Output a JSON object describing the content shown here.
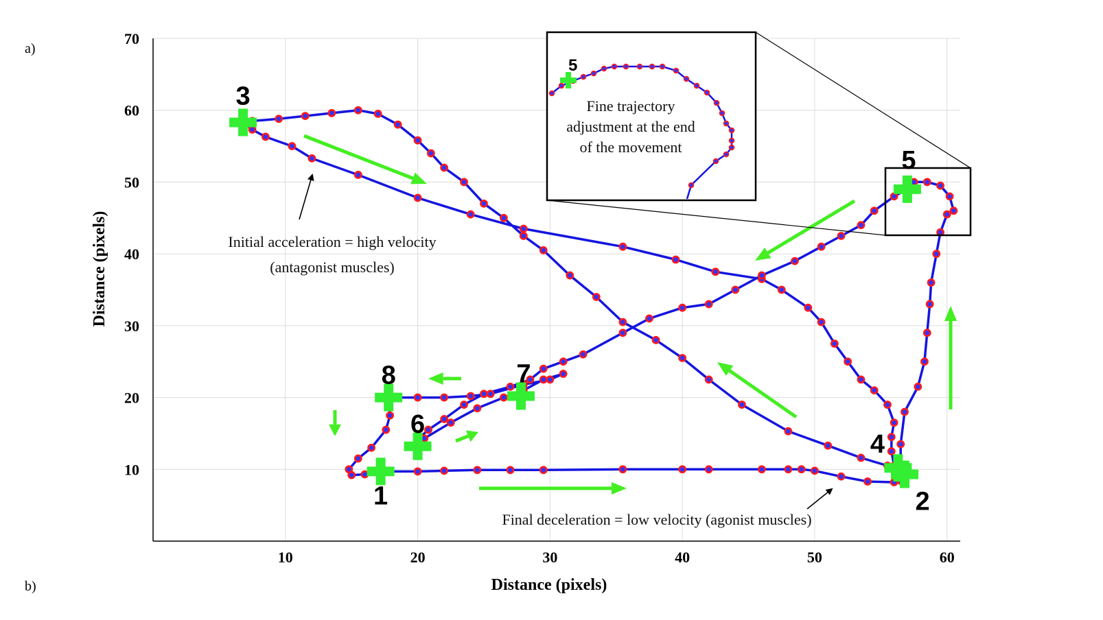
{
  "panel_labels": {
    "a": "a)",
    "b": "b)"
  },
  "chart_data": {
    "type": "line",
    "xlabel": "Distance (pixels)",
    "ylabel": "Distance (pixels)",
    "xlim": [
      0,
      61
    ],
    "ylim": [
      0,
      70
    ],
    "xticks": [
      10,
      20,
      30,
      40,
      50,
      60
    ],
    "yticks": [
      10,
      20,
      30,
      40,
      50,
      60,
      70
    ],
    "grid": true,
    "series": [
      {
        "color": "#1515e0",
        "marker_color": "#ff1a1a",
        "points": [
          [
            17.2,
            9.7
          ],
          [
            17.8,
            9.7
          ],
          [
            20.0,
            9.7
          ],
          [
            22.0,
            9.8
          ],
          [
            24.5,
            9.9
          ],
          [
            27.0,
            9.9
          ],
          [
            29.5,
            9.9
          ],
          [
            35.5,
            10.0
          ],
          [
            40.0,
            10.0
          ],
          [
            42.0,
            10.0
          ],
          [
            46.0,
            10.0
          ],
          [
            48.0,
            10.0
          ],
          [
            49.0,
            10.0
          ],
          [
            50.0,
            9.8
          ],
          [
            52.0,
            9.0
          ],
          [
            54.0,
            8.3
          ],
          [
            56.0,
            8.2
          ],
          [
            56.5,
            8.4
          ],
          [
            56.5,
            9.0
          ],
          [
            56.0,
            10.5
          ],
          [
            55.8,
            12.5
          ],
          [
            55.8,
            14.5
          ],
          [
            56.0,
            16.5
          ],
          [
            55.5,
            19.0
          ],
          [
            54.5,
            21.0
          ],
          [
            53.5,
            22.5
          ],
          [
            52.5,
            25.0
          ],
          [
            51.5,
            27.5
          ],
          [
            50.5,
            30.5
          ],
          [
            49.5,
            32.5
          ],
          [
            47.5,
            35.0
          ],
          [
            46.0,
            36.5
          ],
          [
            42.5,
            37.5
          ],
          [
            39.5,
            39.2
          ],
          [
            35.5,
            41.0
          ],
          [
            28.0,
            43.5
          ],
          [
            24.0,
            45.5
          ],
          [
            20.0,
            47.8
          ],
          [
            15.5,
            51.0
          ],
          [
            12.0,
            53.3
          ],
          [
            10.5,
            55.0
          ],
          [
            8.5,
            56.3
          ],
          [
            7.5,
            57.3
          ],
          [
            6.8,
            58.3
          ],
          [
            7.5,
            58.5
          ],
          [
            9.5,
            58.8
          ],
          [
            11.5,
            59.2
          ],
          [
            13.5,
            59.6
          ],
          [
            15.5,
            60.0
          ],
          [
            17.0,
            59.5
          ],
          [
            18.5,
            58.0
          ],
          [
            20.0,
            55.8
          ],
          [
            21.0,
            54.0
          ],
          [
            22.0,
            52.0
          ],
          [
            23.5,
            50.0
          ],
          [
            25.0,
            47.0
          ],
          [
            26.5,
            45.0
          ],
          [
            28.0,
            42.5
          ],
          [
            29.5,
            40.5
          ],
          [
            31.5,
            37.0
          ],
          [
            33.5,
            34.0
          ],
          [
            35.5,
            30.5
          ],
          [
            38.0,
            28.0
          ],
          [
            40.0,
            25.5
          ],
          [
            42.0,
            22.5
          ],
          [
            44.5,
            19.0
          ],
          [
            48.0,
            15.3
          ],
          [
            51.0,
            13.3
          ],
          [
            53.5,
            11.6
          ],
          [
            55.5,
            10.5
          ],
          [
            56.5,
            9.5
          ],
          [
            56.5,
            10.5
          ],
          [
            56.5,
            13.5
          ],
          [
            56.8,
            18.0
          ],
          [
            57.8,
            21.5
          ],
          [
            58.3,
            25.0
          ],
          [
            58.5,
            29.0
          ],
          [
            58.7,
            33.0
          ],
          [
            58.8,
            36.0
          ],
          [
            59.2,
            40.0
          ],
          [
            59.5,
            43.0
          ],
          [
            60.0,
            45.5
          ],
          [
            60.5,
            46.0
          ],
          [
            60.2,
            48.0
          ],
          [
            59.5,
            49.5
          ],
          [
            58.5,
            50.0
          ],
          [
            57.5,
            50.0
          ],
          [
            57.0,
            49.0
          ],
          [
            56.0,
            48.0
          ],
          [
            54.5,
            46.0
          ],
          [
            53.5,
            44.0
          ],
          [
            52.0,
            42.5
          ],
          [
            50.5,
            41.0
          ],
          [
            48.5,
            39.0
          ],
          [
            46.0,
            37.0
          ],
          [
            44.0,
            35.0
          ],
          [
            42.0,
            33.0
          ],
          [
            40.0,
            32.5
          ],
          [
            37.5,
            31.0
          ],
          [
            35.5,
            29.0
          ],
          [
            32.5,
            26.0
          ],
          [
            31.0,
            25.0
          ],
          [
            29.5,
            24.0
          ],
          [
            28.5,
            22.5
          ],
          [
            27.0,
            21.5
          ],
          [
            25.0,
            20.5
          ],
          [
            23.5,
            19.0
          ],
          [
            22.0,
            17.0
          ],
          [
            20.8,
            15.5
          ],
          [
            20.2,
            14.5
          ],
          [
            20.5,
            14.3
          ],
          [
            22.5,
            16.5
          ],
          [
            24.5,
            18.5
          ],
          [
            26.5,
            20.0
          ],
          [
            28.0,
            21.0
          ],
          [
            29.5,
            22.5
          ],
          [
            31.0,
            23.3
          ],
          [
            30.0,
            22.5
          ],
          [
            28.0,
            21.8
          ],
          [
            25.5,
            20.5
          ],
          [
            24.0,
            20.2
          ],
          [
            22.0,
            20.0
          ],
          [
            20.0,
            20.0
          ],
          [
            18.5,
            20.0
          ],
          [
            17.5,
            20.0
          ],
          [
            17.8,
            19.5
          ],
          [
            17.9,
            17.5
          ],
          [
            17.6,
            15.5
          ],
          [
            16.5,
            13.0
          ],
          [
            15.5,
            11.5
          ],
          [
            14.8,
            10.0
          ],
          [
            15.0,
            9.2
          ],
          [
            16.0,
            9.3
          ],
          [
            17.2,
            9.5
          ]
        ]
      }
    ],
    "start_markers": [
      {
        "label": "1",
        "x": 17.2,
        "y": 9.7
      },
      {
        "label": "2",
        "x": 56.8,
        "y": 9.3
      },
      {
        "label": "3",
        "x": 6.8,
        "y": 58.3
      },
      {
        "label": "4",
        "x": 56.3,
        "y": 10.2
      },
      {
        "label": "5",
        "x": 57.0,
        "y": 49.0
      },
      {
        "label": "6",
        "x": 20.0,
        "y": 13.2
      },
      {
        "label": "7",
        "x": 27.8,
        "y": 20.2
      },
      {
        "label": "8",
        "x": 17.8,
        "y": 20.0
      }
    ],
    "annotations": [
      "Initial acceleration = high velocity",
      "(antagonist muscles)",
      "Final deceleration = low velocity (agonist muscles)"
    ],
    "inset": {
      "marker_label": "5",
      "text": [
        "Fine trajectory",
        "adjustment at the end",
        "of the movement"
      ]
    },
    "colors": {
      "path": "#1515e0",
      "samples": "#ff1a1a",
      "markers": "#33ee33",
      "arrows": "#44ee22"
    }
  }
}
